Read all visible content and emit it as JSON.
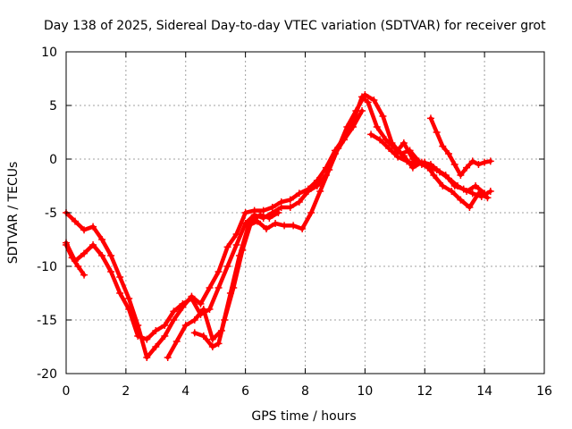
{
  "chart_data": {
    "type": "scatter",
    "title": "Day 138 of 2025, Sidereal Day-to-day VTEC variation (SDTVAR) for receiver grot",
    "xlabel": "GPS time / hours",
    "ylabel": "SDTVAR / TECUs",
    "xlim": [
      0,
      16
    ],
    "ylim": [
      -20,
      10
    ],
    "xticks": [
      0,
      2,
      4,
      6,
      8,
      10,
      12,
      14,
      16
    ],
    "yticks": [
      -20,
      -15,
      -10,
      -5,
      0,
      5,
      10
    ],
    "xtick_labels": [
      "0",
      "2",
      "4",
      "6",
      "8",
      "10",
      "12",
      "14",
      "16"
    ],
    "ytick_labels": [
      "-20",
      "-15",
      "-10",
      "-5",
      "0",
      "5",
      "10"
    ],
    "grid": true,
    "marker_color": "#ff0000",
    "series": [
      {
        "x": [
          0.0,
          0.3,
          0.6,
          0.9,
          1.2,
          1.5,
          1.8,
          2.1,
          2.4,
          2.7,
          3.0,
          3.3,
          3.6,
          3.9,
          4.2,
          4.5,
          4.8,
          5.1,
          5.4,
          5.7,
          6.0,
          6.3,
          6.6,
          6.9,
          7.2,
          7.5,
          7.8,
          8.1,
          8.4,
          8.7,
          9.0,
          9.3,
          9.6,
          9.9,
          10.1,
          10.4,
          10.7,
          11.0,
          11.3,
          11.6,
          11.9,
          12.2,
          12.5,
          12.8,
          13.1,
          13.4,
          13.7,
          14.0
        ],
        "y": [
          -5.0,
          -5.8,
          -6.6,
          -6.3,
          -7.5,
          -9.0,
          -11.0,
          -13.0,
          -15.5,
          -18.5,
          -17.5,
          -16.5,
          -15.0,
          -13.8,
          -12.8,
          -13.5,
          -12.0,
          -10.5,
          -8.2,
          -7.0,
          -5.0,
          -4.8,
          -4.8,
          -4.5,
          -4.0,
          -3.8,
          -3.2,
          -2.8,
          -2.0,
          -0.8,
          0.8,
          2.0,
          3.5,
          5.8,
          5.3,
          3.0,
          1.8,
          1.0,
          0.3,
          -0.8,
          -0.3,
          -0.5,
          -1.2,
          -1.8,
          -2.5,
          -3.0,
          -2.5,
          -3.2
        ]
      },
      {
        "x": [
          0.0,
          0.3,
          0.6,
          0.9,
          1.2,
          1.5,
          1.8,
          2.1,
          2.4,
          2.7,
          3.0,
          3.3,
          3.6,
          3.9,
          4.2,
          4.5,
          4.8,
          5.1,
          5.4,
          5.7,
          6.0,
          6.3,
          6.6,
          6.9,
          7.2,
          7.5,
          7.8,
          8.1,
          8.4,
          8.7,
          9.0,
          9.3,
          9.6,
          9.9
        ],
        "y": [
          -7.8,
          -9.5,
          -8.8,
          -8.0,
          -9.0,
          -10.5,
          -12.5,
          -14.0,
          -16.5,
          -16.8,
          -16.0,
          -15.5,
          -14.2,
          -13.5,
          -13.0,
          -14.5,
          -14.0,
          -12.0,
          -10.0,
          -8.0,
          -6.0,
          -5.2,
          -5.5,
          -5.0,
          -4.5,
          -4.5,
          -4.0,
          -3.0,
          -2.5,
          -1.5,
          0.5,
          1.8,
          3.0,
          4.5
        ]
      },
      {
        "x": [
          0.0,
          0.2,
          0.4,
          0.6
        ],
        "y": [
          -8.0,
          -9.2,
          -10.0,
          -10.8
        ]
      },
      {
        "x": [
          3.4,
          3.7,
          4.0,
          4.3,
          4.6,
          4.9,
          5.2,
          5.5,
          5.8,
          6.1,
          6.4,
          6.7,
          7.0,
          7.3,
          7.6,
          7.9,
          8.2,
          8.5,
          8.8,
          9.1,
          9.4,
          9.7,
          10.0,
          10.3,
          10.6,
          10.9,
          11.2,
          11.5,
          11.8,
          12.1,
          12.4,
          12.7,
          13.0,
          13.3,
          13.6,
          13.9,
          14.2
        ],
        "y": [
          -18.5,
          -17.0,
          -15.5,
          -15.0,
          -14.0,
          -16.8,
          -16.0,
          -12.5,
          -9.0,
          -6.2,
          -5.8,
          -6.5,
          -6.0,
          -6.2,
          -6.2,
          -6.5,
          -5.0,
          -3.0,
          -1.0,
          1.0,
          3.0,
          4.5,
          6.0,
          5.5,
          4.0,
          1.5,
          0.5,
          0.8,
          -0.2,
          -0.8,
          -1.0,
          -1.5,
          -2.5,
          -2.8,
          -3.2,
          -3.5,
          -3.0
        ]
      },
      {
        "x": [
          4.3,
          4.6,
          4.9,
          5.1,
          5.3,
          5.6,
          5.9,
          6.2,
          6.5,
          6.8,
          7.1
        ],
        "y": [
          -16.2,
          -16.5,
          -17.5,
          -17.2,
          -15.0,
          -12.0,
          -8.5,
          -5.8,
          -5.2,
          -5.5,
          -5.0
        ]
      },
      {
        "x": [
          10.2,
          10.5,
          10.8,
          11.1,
          11.4,
          11.7,
          12.0,
          12.3,
          12.6,
          12.9,
          13.2,
          13.5,
          13.8,
          14.1
        ],
        "y": [
          2.3,
          1.8,
          1.0,
          0.2,
          -0.2,
          -0.5,
          -0.3,
          -1.5,
          -2.5,
          -3.0,
          -3.8,
          -4.5,
          -3.2,
          -3.6
        ]
      },
      {
        "x": [
          12.2,
          12.4,
          12.6,
          12.8,
          13.0,
          13.2,
          13.4,
          13.6,
          13.8,
          14.0,
          14.2
        ],
        "y": [
          3.8,
          2.5,
          1.2,
          0.5,
          -0.5,
          -1.5,
          -0.8,
          -0.2,
          -0.5,
          -0.3,
          -0.2
        ]
      },
      {
        "x": [
          11.0,
          11.3,
          11.6,
          11.9,
          12.2
        ],
        "y": [
          0.5,
          1.5,
          0.0,
          -0.5,
          -0.8
        ]
      }
    ]
  }
}
